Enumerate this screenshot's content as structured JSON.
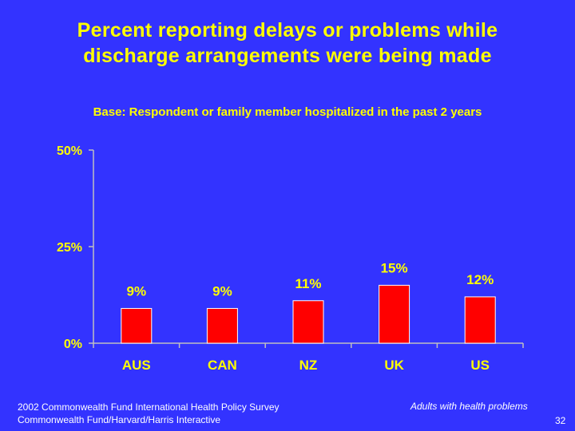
{
  "title": {
    "line1": "Percent reporting delays or problems while",
    "line2": "discharge arrangements were being made"
  },
  "subtitle": "Base: Respondent or family member hospitalized in the past 2 years",
  "chart_data": {
    "type": "bar",
    "categories": [
      "AUS",
      "CAN",
      "NZ",
      "UK",
      "US"
    ],
    "values": [
      9,
      9,
      11,
      15,
      12
    ],
    "data_labels": [
      "9%",
      "9%",
      "11%",
      "15%",
      "12%"
    ],
    "ylim": [
      0,
      50
    ],
    "y_ticks": [
      0,
      25,
      50
    ],
    "y_tick_labels": [
      "0%",
      "25%",
      "50%"
    ],
    "xlabel": "",
    "ylabel": "",
    "grid": false,
    "colors": {
      "bar": "#ff0000",
      "bar_edge": "#ffffff",
      "axis": "#c0c0c0",
      "text": "#ffff00",
      "background": "#3333ff"
    }
  },
  "footer": {
    "source_line1": "2002 Commonwealth Fund International Health Policy Survey",
    "source_line2": "Commonwealth Fund/Harvard/Harris Interactive",
    "note": "Adults with health problems",
    "page_number": "32"
  }
}
